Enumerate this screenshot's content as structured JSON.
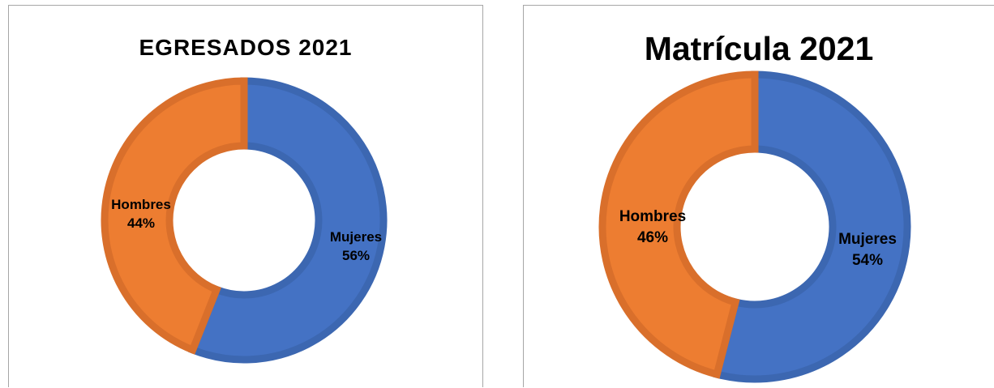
{
  "chart_data": [
    {
      "type": "pie",
      "title": "EGRESADOS 2021",
      "categories": [
        "Mujeres",
        "Hombres"
      ],
      "values": [
        56,
        44
      ],
      "data_labels": [
        "56%",
        "44%"
      ],
      "colors": [
        "#4472C4",
        "#ED7D31"
      ],
      "border_colors": [
        "#3C67B1",
        "#D96F2B"
      ],
      "legend": "none"
    },
    {
      "type": "pie",
      "title": "Matrícula 2021",
      "categories": [
        "Mujeres",
        "Hombres"
      ],
      "values": [
        54,
        46
      ],
      "data_labels": [
        "54%",
        "46%"
      ],
      "colors": [
        "#4472C4",
        "#ED7D31"
      ],
      "border_colors": [
        "#3C67B1",
        "#D96F2B"
      ],
      "legend": "none"
    }
  ]
}
